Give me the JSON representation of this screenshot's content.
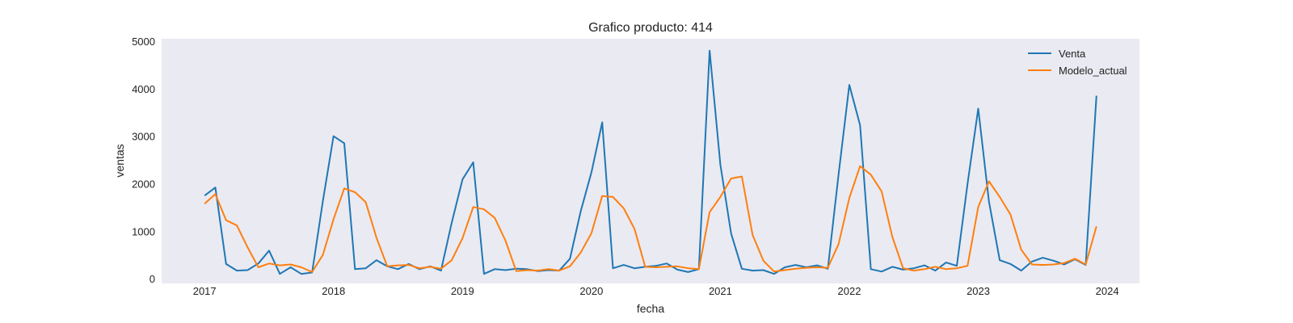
{
  "chart_data": {
    "type": "line",
    "title": "Grafico producto: 414",
    "xlabel": "fecha",
    "ylabel": "ventas",
    "x": [
      "2017-01",
      "2017-02",
      "2017-03",
      "2017-04",
      "2017-05",
      "2017-06",
      "2017-07",
      "2017-08",
      "2017-09",
      "2017-10",
      "2017-11",
      "2017-12",
      "2018-01",
      "2018-02",
      "2018-03",
      "2018-04",
      "2018-05",
      "2018-06",
      "2018-07",
      "2018-08",
      "2018-09",
      "2018-10",
      "2018-11",
      "2018-12",
      "2019-01",
      "2019-02",
      "2019-03",
      "2019-04",
      "2019-05",
      "2019-06",
      "2019-07",
      "2019-08",
      "2019-09",
      "2019-10",
      "2019-11",
      "2019-12",
      "2020-01",
      "2020-02",
      "2020-03",
      "2020-04",
      "2020-05",
      "2020-06",
      "2020-07",
      "2020-08",
      "2020-09",
      "2020-10",
      "2020-11",
      "2020-12",
      "2021-01",
      "2021-02",
      "2021-03",
      "2021-04",
      "2021-05",
      "2021-06",
      "2021-07",
      "2021-08",
      "2021-09",
      "2021-10",
      "2021-11",
      "2021-12",
      "2022-01",
      "2022-02",
      "2022-03",
      "2022-04",
      "2022-05",
      "2022-06",
      "2022-07",
      "2022-08",
      "2022-09",
      "2022-10",
      "2022-11",
      "2022-12",
      "2023-01",
      "2023-02",
      "2023-03",
      "2023-04",
      "2023-05",
      "2023-06",
      "2023-07",
      "2023-08",
      "2023-09",
      "2023-10",
      "2023-11",
      "2023-12"
    ],
    "series": [
      {
        "name": "Venta",
        "color": "#1f77b4",
        "values": [
          1750,
          1920,
          310,
          170,
          180,
          320,
          590,
          100,
          240,
          100,
          130,
          1630,
          3000,
          2850,
          200,
          220,
          390,
          260,
          200,
          310,
          200,
          260,
          170,
          1180,
          2090,
          2450,
          100,
          200,
          180,
          210,
          200,
          160,
          180,
          170,
          420,
          1420,
          2240,
          3290,
          220,
          290,
          220,
          250,
          270,
          320,
          190,
          140,
          200,
          4800,
          2400,
          950,
          210,
          170,
          180,
          100,
          240,
          290,
          240,
          280,
          210,
          2200,
          4080,
          3230,
          200,
          150,
          250,
          190,
          220,
          280,
          170,
          340,
          270,
          2000,
          3580,
          1620,
          390,
          310,
          170,
          360,
          440,
          380,
          300,
          410,
          290,
          3850
        ]
      },
      {
        "name": "Modelo_actual",
        "color": "#ff7f0e",
        "values": [
          1580,
          1780,
          1230,
          1120,
          660,
          240,
          320,
          280,
          300,
          240,
          140,
          500,
          1250,
          1900,
          1820,
          1610,
          860,
          260,
          280,
          290,
          220,
          250,
          210,
          390,
          850,
          1510,
          1460,
          1280,
          800,
          160,
          180,
          170,
          200,
          170,
          260,
          550,
          960,
          1740,
          1720,
          1480,
          1050,
          250,
          240,
          250,
          260,
          220,
          200,
          1400,
          1720,
          2110,
          2150,
          920,
          380,
          150,
          180,
          210,
          230,
          240,
          230,
          730,
          1700,
          2370,
          2190,
          1840,
          880,
          220,
          170,
          200,
          250,
          200,
          220,
          270,
          1510,
          2050,
          1720,
          1350,
          610,
          300,
          290,
          300,
          330,
          420,
          300,
          1100
        ]
      }
    ],
    "xticks": [
      "2017",
      "2018",
      "2019",
      "2020",
      "2021",
      "2022",
      "2023",
      "2024"
    ],
    "yticks": [
      0,
      1000,
      2000,
      3000,
      4000,
      5000
    ],
    "ylim": [
      -100,
      5050
    ],
    "xlim": [
      "2016-09",
      "2024-04"
    ],
    "grid": false,
    "legend": "top-right",
    "background": "#eaeaf2"
  }
}
